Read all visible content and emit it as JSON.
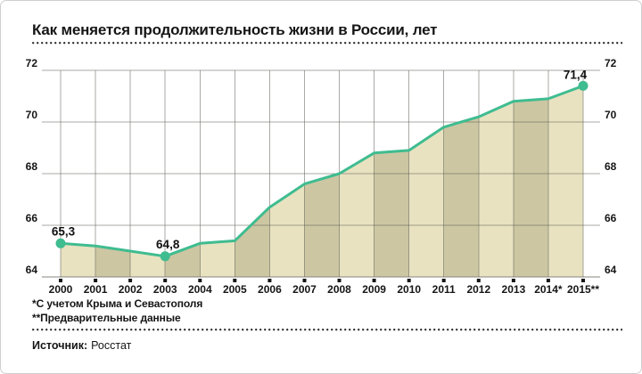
{
  "title": "Как меняется продолжительность жизни в России, лет",
  "footnotes": [
    "*С учетом Крыма и Севастополя",
    "**Предварительные данные"
  ],
  "source": {
    "label": "Источник:",
    "value": "Росстат"
  },
  "chart_data": {
    "type": "area",
    "title": "Как меняется продолжительность жизни в России, лет",
    "years": [
      2000,
      2001,
      2002,
      2003,
      2004,
      2005,
      2006,
      2007,
      2008,
      2009,
      2010,
      2011,
      2012,
      2013,
      2014,
      2015
    ],
    "x_labels": [
      "2000",
      "2001",
      "2002",
      "2003",
      "2004",
      "2005",
      "2006",
      "2007",
      "2008",
      "2009",
      "2010",
      "2011",
      "2012",
      "2013",
      "2014*",
      "2015**"
    ],
    "values": [
      65.3,
      65.2,
      65.0,
      64.8,
      65.3,
      65.4,
      66.7,
      67.6,
      68.0,
      68.8,
      68.9,
      69.8,
      70.2,
      70.8,
      70.9,
      71.4
    ],
    "point_labels": [
      {
        "year": 2000,
        "text": "65,3"
      },
      {
        "year": 2003,
        "text": "64,8"
      },
      {
        "year": 2015,
        "text": "71,4"
      }
    ],
    "y_ticks": [
      64,
      66,
      68,
      70,
      72
    ],
    "ylim": [
      64,
      72
    ],
    "grid": true,
    "legend": "none",
    "colors": {
      "line": "#3fbc90",
      "area_light": "#e8e2c0",
      "area_dark": "#ccc6a2",
      "grid": "#55554e",
      "axis": "#85857e",
      "tick_square": "#151515",
      "text": "#151515"
    }
  }
}
